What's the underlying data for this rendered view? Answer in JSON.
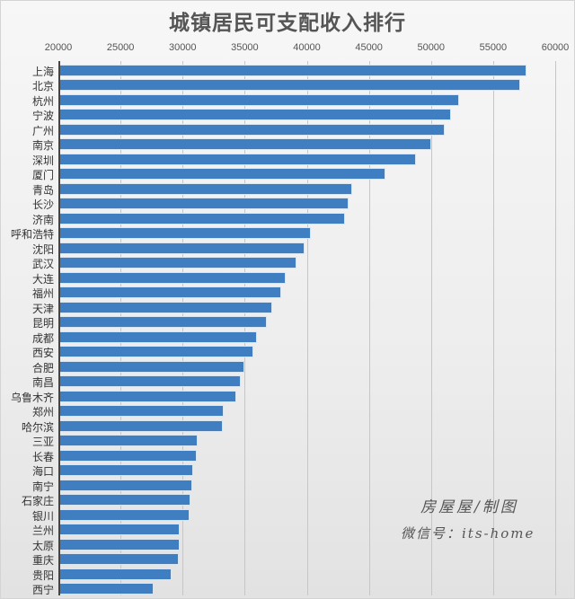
{
  "chart_data": {
    "type": "bar",
    "orientation": "horizontal",
    "title": "城镇居民可支配收入排行",
    "xlabel": "",
    "ylabel": "",
    "xlim": [
      20000,
      60000
    ],
    "x_ticks": [
      20000,
      25000,
      30000,
      35000,
      40000,
      45000,
      50000,
      55000,
      60000
    ],
    "x_axis_position": "top",
    "grid": true,
    "legend": null,
    "bar_color": "#3f7fc1",
    "categories": [
      "上海",
      "北京",
      "杭州",
      "宁波",
      "广州",
      "南京",
      "深圳",
      "厦门",
      "青岛",
      "长沙",
      "济南",
      "呼和浩特",
      "沈阳",
      "武汉",
      "大连",
      "福州",
      "天津",
      "昆明",
      "成都",
      "西安",
      "合肥",
      "南昌",
      "乌鲁木齐",
      "郑州",
      "哈尔滨",
      "三亚",
      "长春",
      "海口",
      "南宁",
      "石家庄",
      "银川",
      "兰州",
      "太原",
      "重庆",
      "贵阳",
      "西宁"
    ],
    "values": [
      57610,
      57110,
      52200,
      51550,
      51000,
      49980,
      48700,
      46250,
      43590,
      43300,
      43030,
      40250,
      39780,
      39130,
      38240,
      37880,
      37140,
      36710,
      35900,
      35610,
      34870,
      34630,
      34220,
      33250,
      33160,
      31170,
      31090,
      30790,
      30730,
      30580,
      30520,
      29690,
      29690,
      29630,
      29070,
      27570
    ]
  },
  "watermark": {
    "line1": "房屋屋/制图",
    "line2": "微信号：its-home"
  }
}
